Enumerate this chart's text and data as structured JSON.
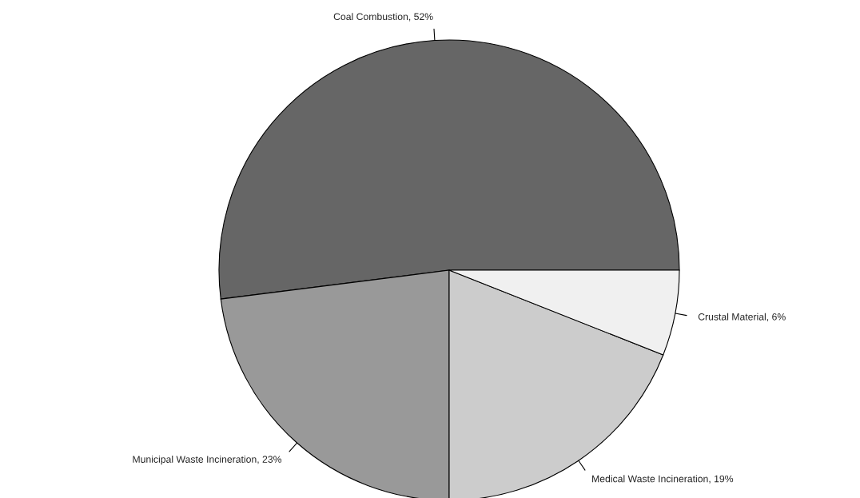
{
  "chart_data": {
    "type": "pie",
    "categories": [
      "Coal Combustion, 52%",
      "Municipal Waste Incineration, 23%",
      "Medical Waste Incineration, 19%",
      "Crustal Material, 6%"
    ],
    "values": [
      52,
      23,
      19,
      6
    ],
    "colors": [
      "#666666",
      "#999999",
      "#cccccc",
      "#f0f0f0"
    ]
  }
}
